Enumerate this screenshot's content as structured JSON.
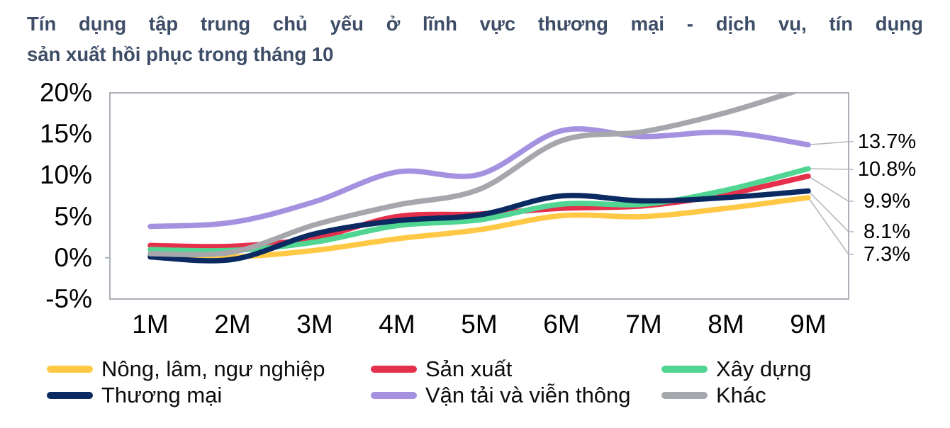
{
  "title": "Tín dụng tập trung chủ yếu ở lĩnh vực thương mại - dịch vụ, tín dụng sản xuất hồi phục trong tháng 10",
  "title_lines": [
    "Tín dụng tập trung chủ yếu ở lĩnh vực thương mại - dịch vụ, tín dụng",
    "sản xuất hồi phục trong tháng 10"
  ],
  "colors": {
    "title_text": "#3E4D67",
    "axis_text": "#000000",
    "plot_border": "#ABB0B8",
    "leader_line": "#B3B8BF"
  },
  "chart_data": {
    "type": "line",
    "title": "Tín dụng tập trung chủ yếu ở lĩnh vực thương mại - dịch vụ, tín dụng sản xuất hồi phục trong tháng 10",
    "x_categories": [
      "1M",
      "2M",
      "3M",
      "4M",
      "5M",
      "6M",
      "7M",
      "8M",
      "9M"
    ],
    "y_tick_labels": [
      "20%",
      "15%",
      "10%",
      "5%",
      "0%",
      "-5%"
    ],
    "y_tick_values": [
      20,
      15,
      10,
      5,
      0,
      -5
    ],
    "ylim": [
      -5,
      20
    ],
    "grid": false,
    "legend_position": "bottom",
    "series": [
      {
        "name": "Nông, lâm, ngư nghiệp",
        "color": "#FFC845",
        "values": [
          0.2,
          0.1,
          0.9,
          2.3,
          3.4,
          5.1,
          5.0,
          6.0,
          7.3
        ],
        "end_label": "7.3%"
      },
      {
        "name": "Sản xuất",
        "color": "#E5304C",
        "values": [
          1.5,
          1.4,
          2.4,
          5.0,
          5.3,
          6.0,
          6.3,
          7.7,
          9.9
        ],
        "end_label": "9.9%"
      },
      {
        "name": "Xây dựng",
        "color": "#50D592",
        "values": [
          1.0,
          0.9,
          1.9,
          3.9,
          4.6,
          6.5,
          6.5,
          8.2,
          10.8
        ],
        "end_label": "10.8%"
      },
      {
        "name": "Thương mại",
        "color": "#0C2A62",
        "values": [
          0.1,
          -0.2,
          2.9,
          4.5,
          5.2,
          7.5,
          6.9,
          7.3,
          8.1
        ],
        "end_label": "8.1%"
      },
      {
        "name": "Vận tải và viễn thông",
        "color": "#A492E0",
        "values": [
          3.8,
          4.3,
          6.8,
          10.4,
          10.1,
          15.4,
          14.7,
          15.2,
          13.7
        ],
        "end_label": "13.7%"
      },
      {
        "name": "Khác",
        "color": "#A6A7AD",
        "values": [
          0.5,
          0.7,
          4.0,
          6.4,
          8.3,
          14.2,
          15.3,
          17.6,
          20.7
        ],
        "end_label": null
      }
    ]
  }
}
